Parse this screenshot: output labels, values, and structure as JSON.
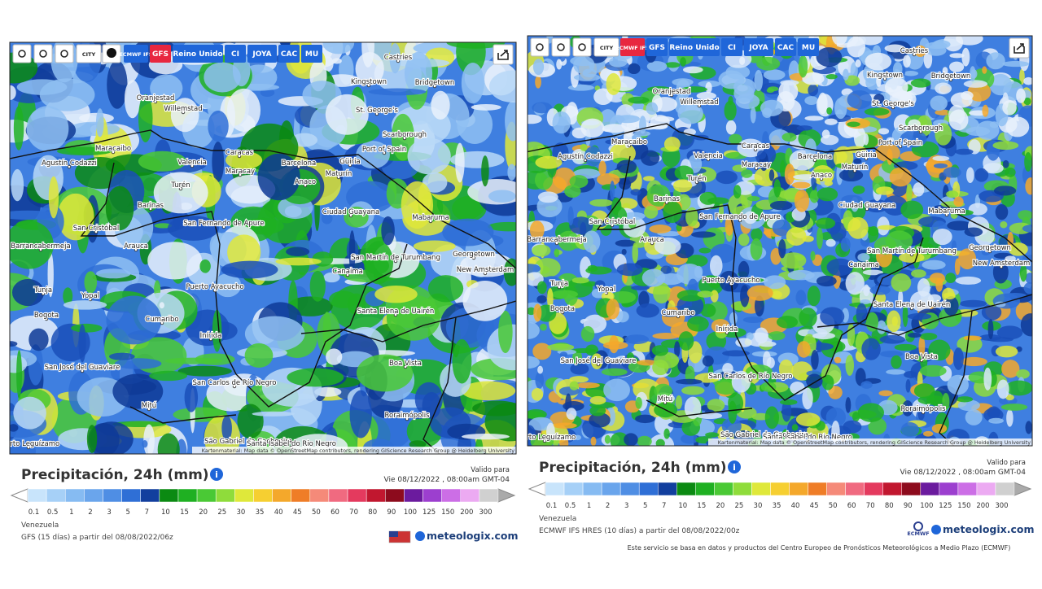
{
  "panels": [
    {
      "toolbar": [
        "CITY",
        "ECMWF IFS",
        "GFS",
        "Reino Unido",
        "CI",
        "JOYA",
        "CAC",
        "MU"
      ],
      "active_model": "GFS",
      "attribution": "Kartenmaterial: Map data © OpenStreetMap contributors, rendering GIScience Research Group @ Heidelberg University",
      "title": "Precipitación, 24h (mm)",
      "valid_label": "Valido para",
      "valid_time": "Vie 08/12/2022 , 08:00am GMT-04",
      "legend_values": [
        0.1,
        0.5,
        1,
        2,
        3,
        5,
        7,
        10,
        15,
        20,
        25,
        30,
        35,
        40,
        45,
        50,
        60,
        70,
        80,
        90,
        100,
        125,
        150,
        200,
        300
      ],
      "region": "Venezuela",
      "model": "GFS (15 días) a partir del 08/08/2022/06z",
      "brand": "meteologix.com"
    },
    {
      "toolbar": [
        "CITY",
        "ECMWF IFS",
        "GFS",
        "Reino Unido",
        "CI",
        "JOYA",
        "CAC",
        "MU"
      ],
      "active_model": "ECMWF IFS",
      "attribution": "Kartenmaterial: Map data © OpenStreetMap contributors, rendering GIScience Research Group @ Heidelberg University",
      "title": "Precipitación, 24h (mm)",
      "valid_label": "Valido para",
      "valid_time": "Vie 08/12/2022 , 08:00am GMT-04",
      "legend_values": [
        0.1,
        0.5,
        1,
        2,
        3,
        5,
        7,
        10,
        15,
        20,
        25,
        30,
        35,
        40,
        45,
        50,
        60,
        70,
        80,
        90,
        100,
        125,
        150,
        200,
        300
      ],
      "region": "Venezuela",
      "model": "ECMWF IFS HRES (10 días) a partir del 08/08/2022/00z",
      "brand": "meteologix.com",
      "logo": "ECMWF",
      "disclaimer": "Este servicio se basa en datos y productos del Centro Europeo de Pronósticos Meteorológicos a Medio Plazo (ECMWF)"
    }
  ],
  "places": [
    "Castries",
    "Kingstown",
    "Bridgetown",
    "Oranjestad",
    "Willemstad",
    "St. George's",
    "Scarborough",
    "Port of Spain",
    "Maracaibo",
    "Agustín Codazzi",
    "Caracas",
    "Barcelona",
    "Güiria",
    "Valencia",
    "Maracay",
    "Maturín",
    "Anaco",
    "Turén",
    "Barinas",
    "Ciudad Guayana",
    "Mabaruma",
    "San Cristóbal",
    "Arauca",
    "San Fernando de Apure",
    "Barrancabermeja",
    "San Martín de Turumbang",
    "Georgetown",
    "New Amsterdam",
    "Canaima",
    "Puerto Ayacucho",
    "Tunja",
    "Yopal",
    "Santa Elena de Uairén",
    "Bogota",
    "Cumaribo",
    "Inírida",
    "Boa Vista",
    "San José del Guaviare",
    "San Carlos de Río Negro",
    "Roraimópolis",
    "Mitú",
    "São Gabriel da Cachoeira",
    "Santa Isabel do Rio Negro",
    "Puerto Leguízamo"
  ]
}
